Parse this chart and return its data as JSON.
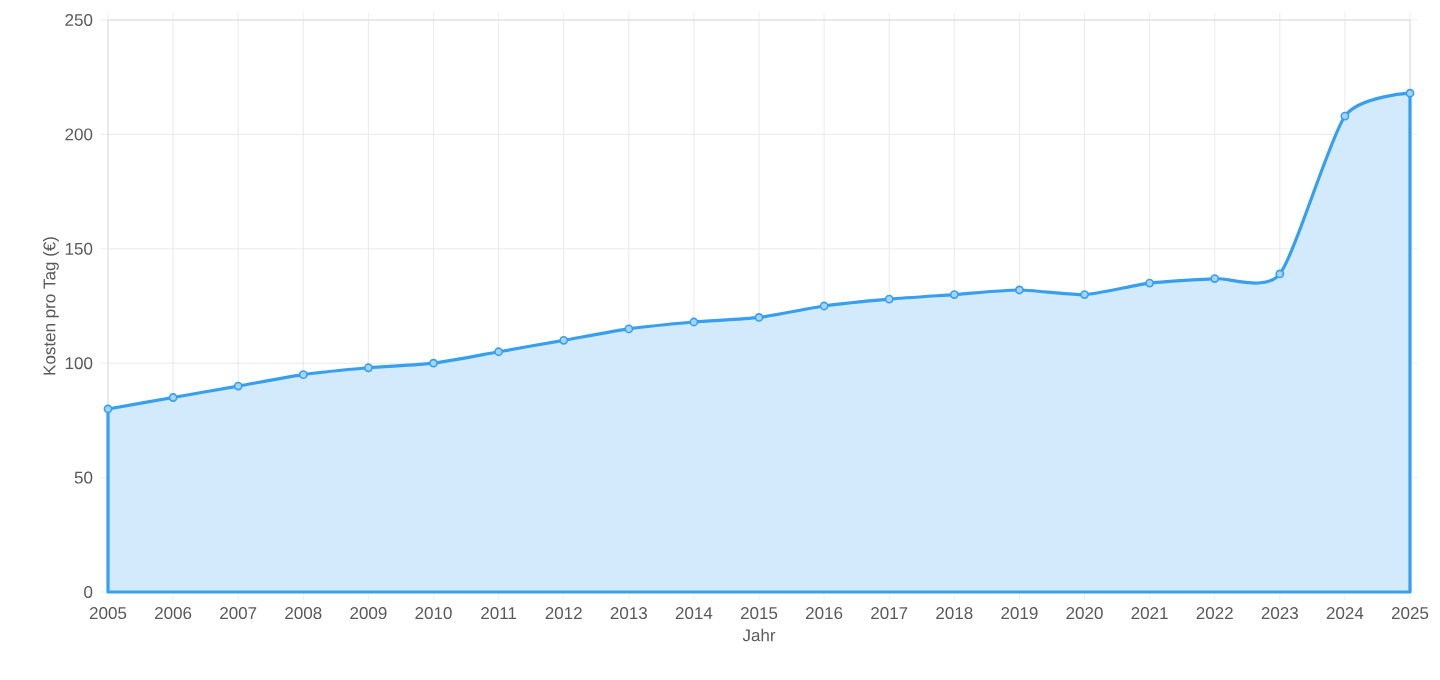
{
  "chart_data": {
    "type": "area",
    "xlabel": "Jahr",
    "ylabel": "Kosten pro Tag (€)",
    "x": [
      2005,
      2006,
      2007,
      2008,
      2009,
      2010,
      2011,
      2012,
      2013,
      2014,
      2015,
      2016,
      2017,
      2018,
      2019,
      2020,
      2021,
      2022,
      2023,
      2024,
      2025
    ],
    "series": [
      {
        "color": "#369ff0",
        "values": [
          80,
          85,
          90,
          95,
          98,
          100,
          105,
          110,
          115,
          118,
          120,
          125,
          128,
          130,
          132,
          130,
          135,
          137,
          139,
          208,
          218
        ]
      }
    ],
    "xlim": [
      2005,
      2025
    ],
    "xticks": [
      2005,
      2006,
      2007,
      2008,
      2009,
      2010,
      2011,
      2012,
      2013,
      2014,
      2015,
      2016,
      2017,
      2018,
      2019,
      2020,
      2021,
      2022,
      2023,
      2024,
      2025
    ],
    "ylim": [
      0,
      250
    ],
    "yticks": [
      0,
      50,
      100,
      150,
      200,
      250
    ],
    "grid": true,
    "marker": "circle",
    "line_style": "solid"
  }
}
